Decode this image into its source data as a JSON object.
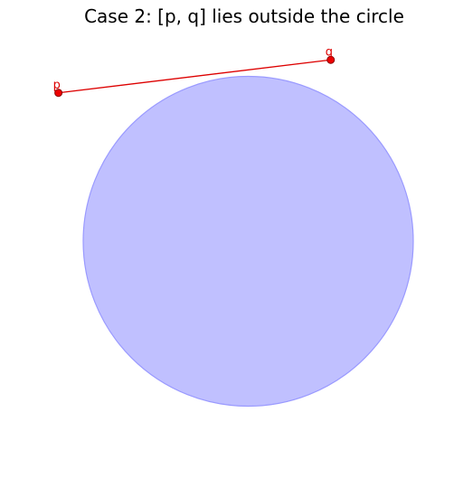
{
  "title": "Case 2: [p, q] lies outside the circle",
  "colors": {
    "circle_fill": "#c0c0ff",
    "circle_stroke": "#9a9aff",
    "segment": "#dd0000",
    "point_fill": "#ee0000",
    "point_stroke": "#880000",
    "label": "#dd0000"
  },
  "circle": {
    "cx": 0.0,
    "cy": 0.0,
    "r": 1.0
  },
  "points": [
    {
      "label": "p",
      "x": -1.15,
      "y": 0.9
    },
    {
      "label": "q",
      "x": 0.5,
      "y": 1.1
    }
  ],
  "segment": {
    "from": "p",
    "to": "q"
  }
}
